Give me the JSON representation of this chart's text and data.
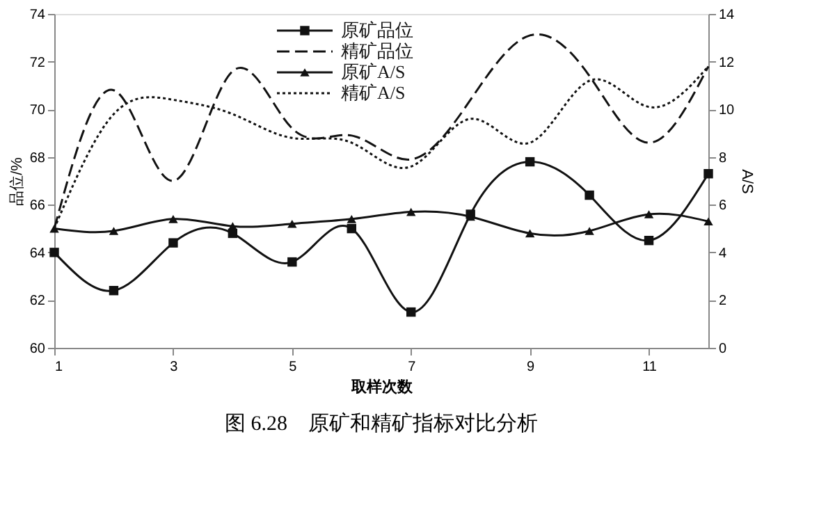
{
  "chart_data": {
    "type": "line",
    "title": "图 6.28　原矿和精矿指标对比分析",
    "xlabel": "取样次数",
    "ylabel": "品位/%",
    "y2label": "A/S",
    "x": [
      1,
      2,
      3,
      4,
      5,
      6,
      7,
      8,
      9,
      10,
      11,
      12
    ],
    "series": [
      {
        "name": "原矿品位",
        "color": "#111111",
        "axis": "y",
        "line_style": "solid",
        "marker": "square",
        "values": [
          64.0,
          62.4,
          64.4,
          64.8,
          63.6,
          65.0,
          61.5,
          65.6,
          67.8,
          66.4,
          64.5,
          67.3
        ]
      },
      {
        "name": "精矿品位",
        "color": "#111111",
        "axis": "y",
        "line_style": "dashed",
        "marker": "none",
        "values": [
          65.0,
          70.8,
          67.0,
          71.6,
          69.2,
          68.9,
          67.9,
          70.4,
          73.1,
          71.4,
          68.6,
          71.8
        ]
      },
      {
        "name": "原矿A/S",
        "color": "#111111",
        "axis": "y2",
        "line_style": "solid",
        "marker": "triangle",
        "values": [
          5.0,
          4.9,
          5.4,
          5.1,
          5.2,
          5.4,
          5.7,
          5.5,
          4.8,
          4.9,
          5.6,
          5.3
        ]
      },
      {
        "name": "精矿A/S",
        "color": "#111111",
        "axis": "y2",
        "line_style": "dotted",
        "marker": "none",
        "values": [
          5.0,
          9.8,
          10.4,
          9.8,
          8.8,
          8.6,
          7.6,
          9.6,
          8.6,
          11.2,
          10.1,
          11.8
        ]
      }
    ],
    "xlim": [
      1,
      12
    ],
    "xticks": [
      1,
      3,
      5,
      7,
      9,
      11
    ],
    "ylim": [
      60,
      74
    ],
    "yticks": [
      60,
      62,
      64,
      66,
      68,
      70,
      72,
      74
    ],
    "y2lim": [
      0,
      14
    ],
    "y2ticks": [
      0,
      2,
      4,
      6,
      8,
      10,
      12,
      14
    ],
    "grid": false,
    "legend": "top"
  }
}
